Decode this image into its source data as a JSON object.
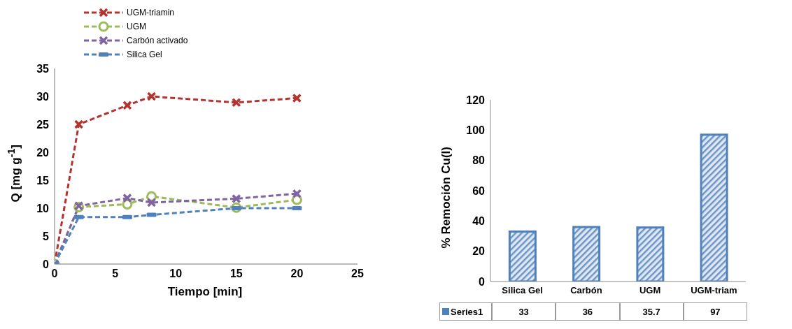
{
  "chart_data": [
    {
      "type": "line",
      "xlabel": "Tiempo [min]",
      "ylabel": "Q [mg g$^{-1}$]",
      "xlim": [
        0,
        25
      ],
      "xticks": [
        0,
        5,
        10,
        15,
        20,
        25
      ],
      "ylim": [
        0,
        35
      ],
      "yticks": [
        0,
        5,
        10,
        15,
        20,
        25,
        30,
        35
      ],
      "legend": "top",
      "line_style": "dashed",
      "series": [
        {
          "name": "UGM-triamin",
          "color": "#b5332e",
          "marker": "cross",
          "x": [
            0,
            2,
            6,
            8,
            15,
            20
          ],
          "values": [
            0,
            25,
            28.4,
            30,
            28.9,
            29.7
          ]
        },
        {
          "name": "UGM",
          "color": "#9bbb59",
          "marker": "circle",
          "x": [
            0,
            2,
            6,
            8,
            15,
            20
          ],
          "values": [
            0,
            10.2,
            10.7,
            12.1,
            10.1,
            11.5
          ]
        },
        {
          "name": "Carbón activado",
          "color": "#8064a2",
          "marker": "cross",
          "x": [
            0,
            2,
            6,
            8,
            15,
            20
          ],
          "values": [
            0,
            10.4,
            11.8,
            11,
            11.7,
            12.6
          ]
        },
        {
          "name": "Silica Gel",
          "color": "#4f81bd",
          "marker": "square",
          "x": [
            0,
            2,
            6,
            8,
            15,
            20
          ],
          "values": [
            0,
            8.4,
            8.4,
            8.8,
            10,
            10
          ]
        }
      ]
    },
    {
      "type": "bar",
      "ylabel": "% Remoción Cu(I)",
      "categories": [
        "Silica Gel",
        "Carbón",
        "UGM",
        "UGM-triam"
      ],
      "ylim": [
        0,
        120
      ],
      "yticks": [
        0,
        20,
        40,
        60,
        80,
        100,
        120
      ],
      "legend": "bottom",
      "data_labels": true,
      "series": [
        {
          "name": "Series1",
          "color": "#4f81bd",
          "values": [
            33,
            36,
            35.7,
            97
          ]
        }
      ]
    }
  ]
}
